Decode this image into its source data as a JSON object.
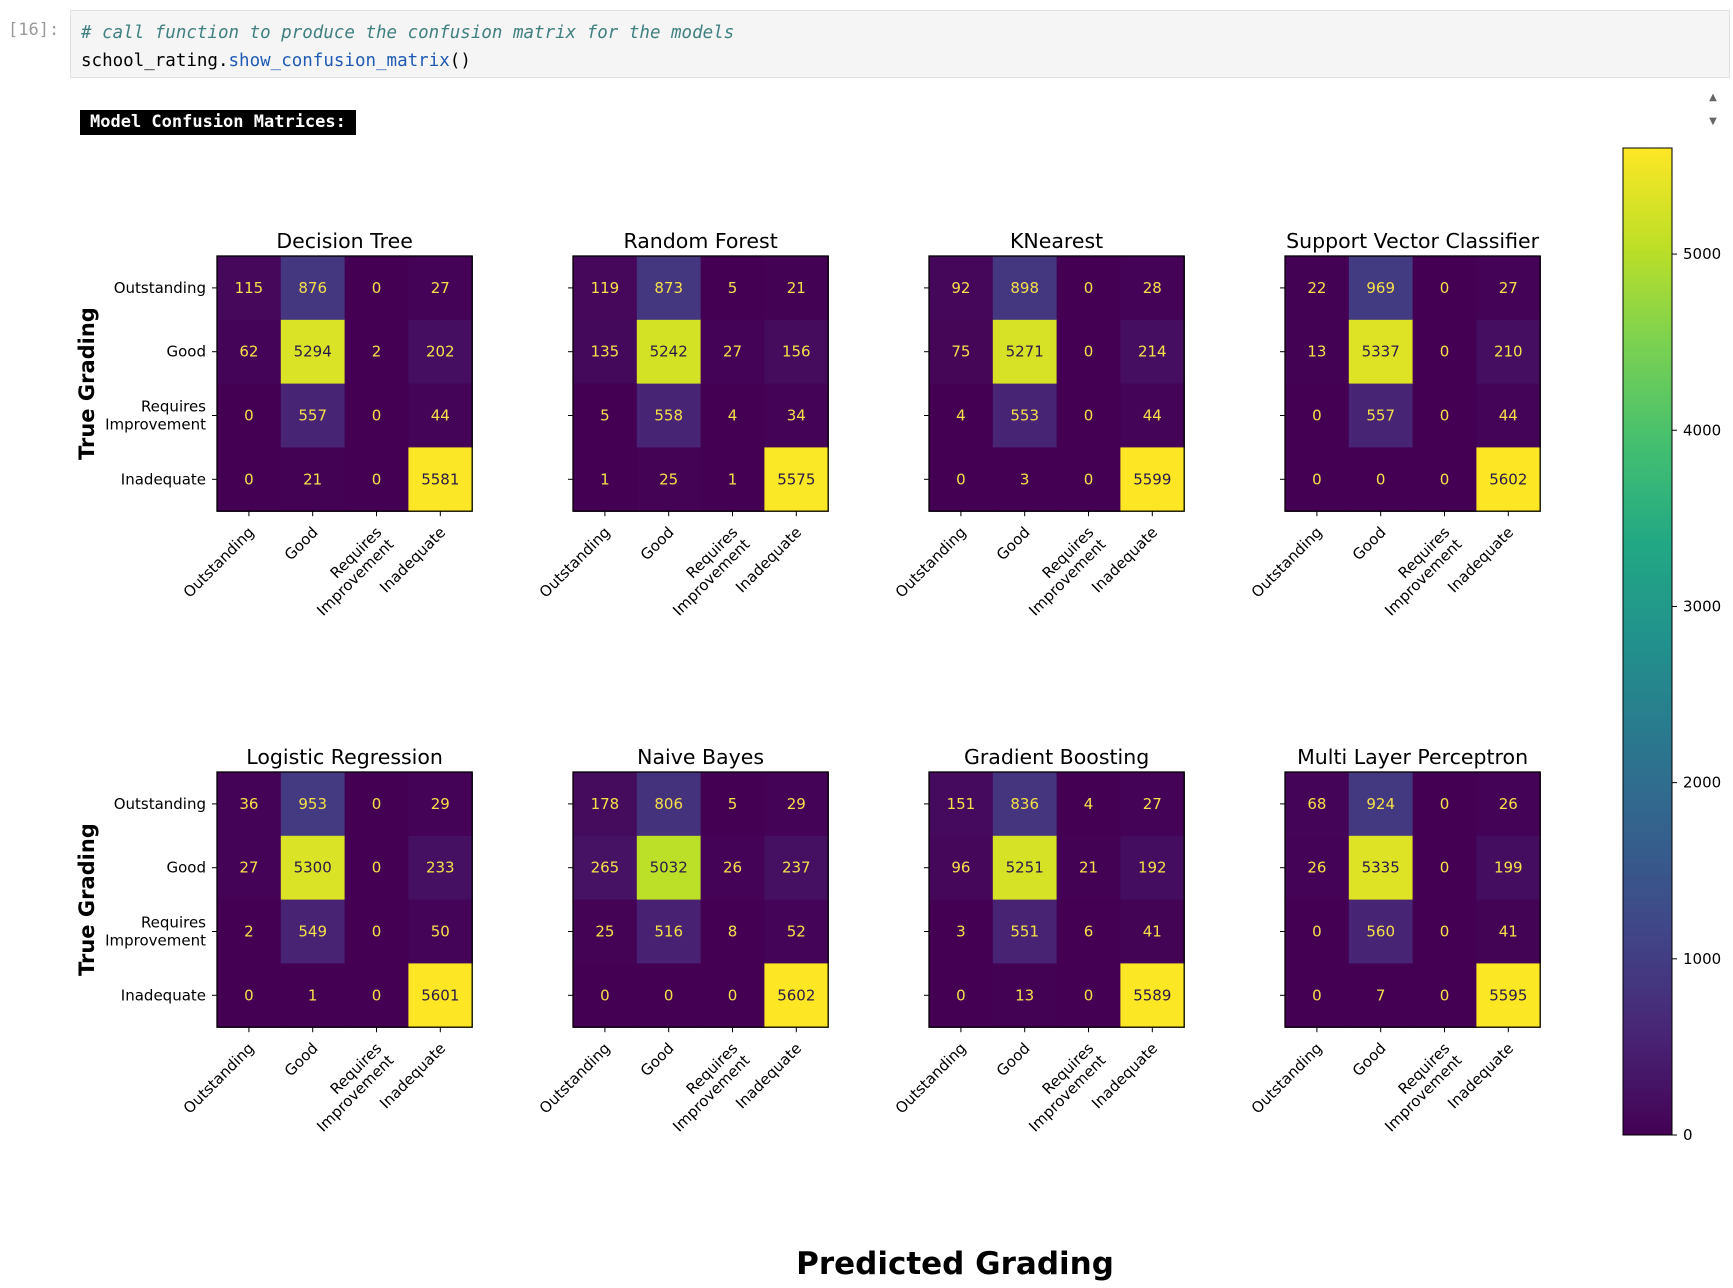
{
  "cell": {
    "prompt": "[16]:",
    "code_comment": "# call function to produce the confusion matrix for the models",
    "code_var": "school_rating.",
    "code_fn": "show_confusion_matrix",
    "code_paren": "()"
  },
  "output": {
    "header": "Model Confusion Matrices:",
    "scroll_up_icon": "triangle-up",
    "scroll_down_icon": "triangle-down"
  },
  "chart_data": {
    "type": "heatmap",
    "colormap": "viridis",
    "vmin": 0,
    "vmax": 5602,
    "class_labels": [
      "Outstanding",
      "Good",
      "Requires\nImprovement",
      "Inadequate"
    ],
    "ylabel": "True Grading",
    "xlabel": "Predicted Grading",
    "colorbar_ticks": [
      0,
      1000,
      2000,
      3000,
      4000,
      5000
    ],
    "matrices": [
      {
        "title": "Decision Tree",
        "values": [
          [
            115,
            876,
            0,
            27
          ],
          [
            62,
            5294,
            2,
            202
          ],
          [
            0,
            557,
            0,
            44
          ],
          [
            0,
            21,
            0,
            5581
          ]
        ]
      },
      {
        "title": "Random Forest",
        "values": [
          [
            119,
            873,
            5,
            21
          ],
          [
            135,
            5242,
            27,
            156
          ],
          [
            5,
            558,
            4,
            34
          ],
          [
            1,
            25,
            1,
            5575
          ]
        ]
      },
      {
        "title": "KNearest",
        "values": [
          [
            92,
            898,
            0,
            28
          ],
          [
            75,
            5271,
            0,
            214
          ],
          [
            4,
            553,
            0,
            44
          ],
          [
            0,
            3,
            0,
            5599
          ]
        ]
      },
      {
        "title": "Support Vector Classifier",
        "values": [
          [
            22,
            969,
            0,
            27
          ],
          [
            13,
            5337,
            0,
            210
          ],
          [
            0,
            557,
            0,
            44
          ],
          [
            0,
            0,
            0,
            5602
          ]
        ]
      },
      {
        "title": "Logistic Regression",
        "values": [
          [
            36,
            953,
            0,
            29
          ],
          [
            27,
            5300,
            0,
            233
          ],
          [
            2,
            549,
            0,
            50
          ],
          [
            0,
            1,
            0,
            5601
          ]
        ]
      },
      {
        "title": "Naive Bayes",
        "values": [
          [
            178,
            806,
            5,
            29
          ],
          [
            265,
            5032,
            26,
            237
          ],
          [
            25,
            516,
            8,
            52
          ],
          [
            0,
            0,
            0,
            5602
          ]
        ]
      },
      {
        "title": "Gradient Boosting",
        "values": [
          [
            151,
            836,
            4,
            27
          ],
          [
            96,
            5251,
            21,
            192
          ],
          [
            3,
            551,
            6,
            41
          ],
          [
            0,
            13,
            0,
            5589
          ]
        ]
      },
      {
        "title": "Multi Layer Perceptron",
        "values": [
          [
            68,
            924,
            0,
            26
          ],
          [
            26,
            5335,
            0,
            199
          ],
          [
            0,
            560,
            0,
            41
          ],
          [
            0,
            7,
            0,
            5595
          ]
        ]
      }
    ]
  }
}
